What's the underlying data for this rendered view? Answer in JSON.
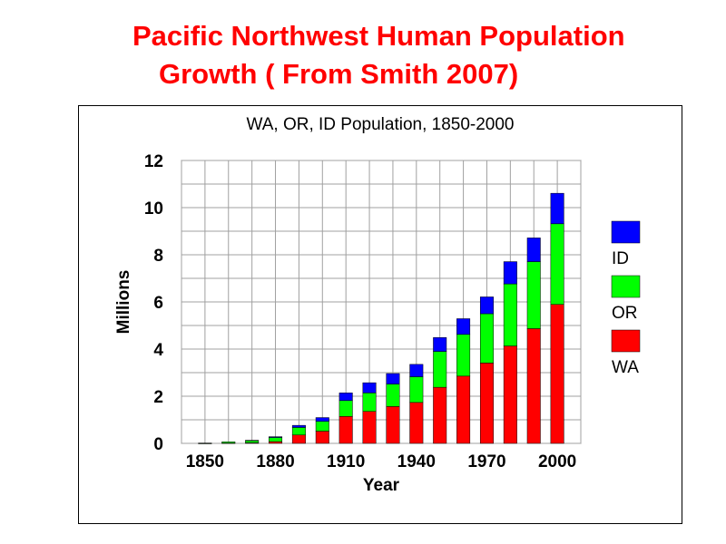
{
  "slide": {
    "title_line1": "Pacific Northwest Human Population",
    "title_line2": "Growth ( From Smith 2007)"
  },
  "chart_data": {
    "type": "bar",
    "stacked": true,
    "title": "WA, OR, ID Population, 1850-2000",
    "xlabel": "Year",
    "ylabel": "Millions",
    "ylim": [
      0,
      12
    ],
    "yticks": [
      0,
      2,
      4,
      6,
      8,
      10,
      12
    ],
    "xtick_labels": [
      "1850",
      "1880",
      "1910",
      "1940",
      "1970",
      "2000"
    ],
    "grid": true,
    "legend_position": "right",
    "categories": [
      "1850",
      "1860",
      "1870",
      "1880",
      "1890",
      "1900",
      "1910",
      "1920",
      "1930",
      "1940",
      "1950",
      "1960",
      "1970",
      "1980",
      "1990",
      "2000"
    ],
    "series": [
      {
        "name": "WA",
        "color": "#ff0000",
        "values": [
          0.001,
          0.012,
          0.024,
          0.075,
          0.357,
          0.518,
          1.142,
          1.357,
          1.563,
          1.736,
          2.379,
          2.853,
          3.409,
          4.132,
          4.867,
          5.894
        ]
      },
      {
        "name": "OR",
        "color": "#00ff00",
        "values": [
          0.012,
          0.052,
          0.091,
          0.175,
          0.318,
          0.414,
          0.673,
          0.783,
          0.954,
          1.09,
          1.521,
          1.769,
          2.091,
          2.633,
          2.842,
          3.421
        ]
      },
      {
        "name": "ID",
        "color": "#0000ff",
        "values": [
          0.0,
          0.0,
          0.015,
          0.033,
          0.089,
          0.162,
          0.326,
          0.432,
          0.445,
          0.525,
          0.589,
          0.667,
          0.713,
          0.944,
          1.007,
          1.294
        ]
      }
    ],
    "legend_order": [
      "ID",
      "OR",
      "WA"
    ]
  }
}
